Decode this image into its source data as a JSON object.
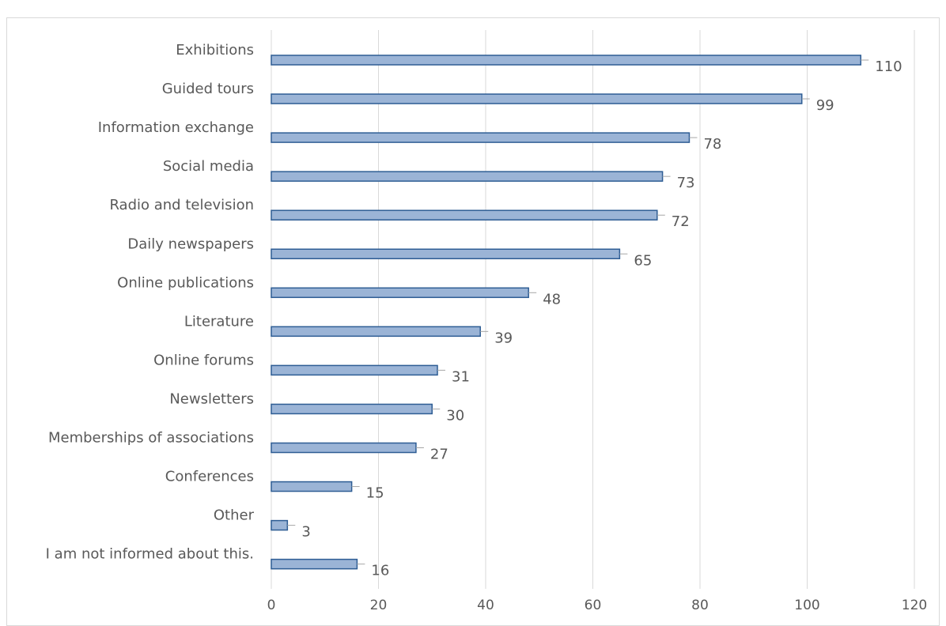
{
  "chart_data": {
    "type": "bar",
    "orientation": "horizontal",
    "title": "",
    "xlabel": "",
    "ylabel": "",
    "categories": [
      "Exhibitions",
      "Guided tours",
      "Information exchange",
      "Social media",
      "Radio and television",
      "Daily newspapers",
      "Online publications",
      "Literature",
      "Online forums",
      "Newsletters",
      "Memberships of associations",
      "Conferences",
      "Other",
      "I am not informed about this."
    ],
    "values": [
      110,
      99,
      78,
      73,
      72,
      65,
      48,
      39,
      31,
      30,
      27,
      15,
      3,
      16
    ],
    "xlim": [
      0,
      120
    ],
    "xticks": [
      0,
      20,
      40,
      60,
      80,
      100,
      120
    ],
    "grid": true,
    "legend": "none",
    "colors": {
      "bar_fill": "#9bb4d6",
      "bar_stroke": "#2e5d94",
      "grid": "#d9d9d9",
      "text": "#595959"
    }
  }
}
